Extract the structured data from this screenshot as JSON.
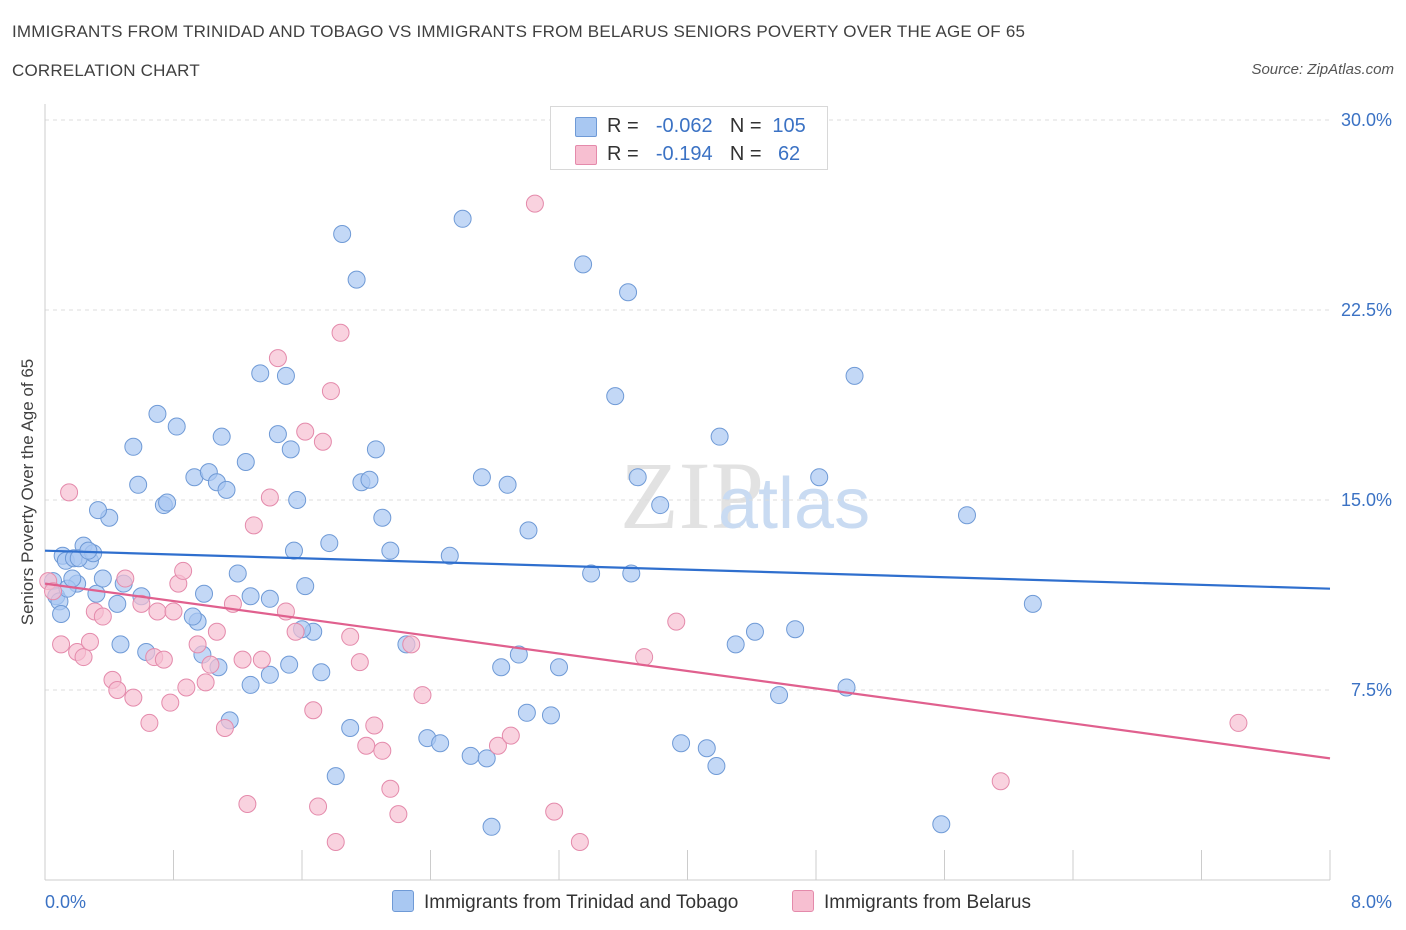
{
  "header": {
    "title": "IMMIGRANTS FROM TRINIDAD AND TOBAGO VS IMMIGRANTS FROM BELARUS SENIORS POVERTY OVER THE AGE OF 65",
    "subtitle": "CORRELATION CHART",
    "source": "Source: ZipAtlas.com"
  },
  "legend": {
    "series1": {
      "r_label": "R =",
      "r_value": "-0.062",
      "n_label": "N =",
      "n_value": "105"
    },
    "series2": {
      "r_label": "R =",
      "r_value": "-0.194",
      "n_label": "N =",
      "n_value": "62"
    }
  },
  "bottom_legend": {
    "series1_label": "Immigrants from Trinidad and Tobago",
    "series2_label": "Immigrants from Belarus"
  },
  "watermark": {
    "part1": "ZIP",
    "part2": "atlas"
  },
  "colors": {
    "series1_fill": "#a9c8f2",
    "series1_stroke": "#6f9ad6",
    "series1_line": "#2f6fce",
    "series2_fill": "#f7bfd1",
    "series2_stroke": "#e48aab",
    "series2_line": "#e0608e",
    "tick_label": "#3b72c4",
    "grid": "#dcdcdc"
  },
  "chart_data": {
    "type": "scatter",
    "title": "IMMIGRANTS FROM TRINIDAD AND TOBAGO VS IMMIGRANTS FROM BELARUS SENIORS POVERTY OVER THE AGE OF 65",
    "xlabel": "",
    "ylabel": "Seniors Poverty Over the Age of 65",
    "xlim": [
      0,
      8
    ],
    "ylim": [
      0,
      30
    ],
    "x_tick_labels": [
      "0.0%",
      "8.0%"
    ],
    "y_ticks": [
      7.5,
      15.0,
      22.5,
      30.0
    ],
    "y_tick_labels": [
      "7.5%",
      "15.0%",
      "22.5%",
      "30.0%"
    ],
    "grid": "horizontal dashed",
    "legend_position": "top-center",
    "series": [
      {
        "name": "Immigrants from Trinidad and Tobago",
        "trend": {
          "x": [
            0,
            8
          ],
          "y": [
            13.0,
            11.5
          ]
        },
        "points": [
          [
            0.05,
            11.8
          ],
          [
            0.07,
            11.2
          ],
          [
            0.09,
            11.0
          ],
          [
            0.11,
            12.8
          ],
          [
            0.13,
            12.6
          ],
          [
            0.18,
            12.7
          ],
          [
            0.2,
            11.7
          ],
          [
            0.24,
            13.2
          ],
          [
            0.28,
            12.6
          ],
          [
            0.32,
            11.3
          ],
          [
            0.36,
            11.9
          ],
          [
            0.14,
            11.5
          ],
          [
            0.21,
            12.7
          ],
          [
            0.3,
            12.9
          ],
          [
            0.45,
            10.9
          ],
          [
            0.47,
            9.3
          ],
          [
            0.63,
            9.0
          ],
          [
            0.58,
            15.6
          ],
          [
            0.55,
            17.1
          ],
          [
            0.49,
            11.7
          ],
          [
            0.6,
            11.2
          ],
          [
            0.7,
            18.4
          ],
          [
            0.74,
            14.8
          ],
          [
            0.76,
            14.9
          ],
          [
            0.82,
            17.9
          ],
          [
            0.93,
            15.9
          ],
          [
            0.95,
            10.2
          ],
          [
            0.99,
            11.3
          ],
          [
            1.02,
            16.1
          ],
          [
            1.07,
            15.7
          ],
          [
            1.1,
            17.5
          ],
          [
            1.13,
            15.4
          ],
          [
            0.92,
            10.4
          ],
          [
            1.2,
            12.1
          ],
          [
            1.25,
            16.5
          ],
          [
            1.28,
            11.2
          ],
          [
            1.34,
            20.0
          ],
          [
            1.4,
            11.1
          ],
          [
            1.45,
            17.6
          ],
          [
            1.5,
            19.9
          ],
          [
            1.53,
            17.0
          ],
          [
            1.57,
            15.0
          ],
          [
            1.62,
            11.6
          ],
          [
            1.67,
            9.8
          ],
          [
            1.77,
            13.3
          ],
          [
            1.85,
            25.5
          ],
          [
            1.9,
            6.0
          ],
          [
            1.94,
            23.7
          ],
          [
            1.97,
            15.7
          ],
          [
            2.02,
            15.8
          ],
          [
            2.06,
            17.0
          ],
          [
            2.1,
            14.3
          ],
          [
            2.15,
            13.0
          ],
          [
            2.25,
            9.3
          ],
          [
            2.38,
            5.6
          ],
          [
            2.46,
            5.4
          ],
          [
            2.52,
            12.8
          ],
          [
            2.65,
            4.9
          ],
          [
            2.6,
            26.1
          ],
          [
            2.72,
            15.9
          ],
          [
            2.75,
            4.8
          ],
          [
            2.78,
            2.1
          ],
          [
            2.84,
            8.4
          ],
          [
            2.88,
            15.6
          ],
          [
            2.95,
            8.9
          ],
          [
            3.0,
            6.6
          ],
          [
            3.01,
            13.8
          ],
          [
            3.15,
            6.5
          ],
          [
            3.2,
            8.4
          ],
          [
            3.35,
            24.3
          ],
          [
            3.4,
            12.1
          ],
          [
            3.55,
            19.1
          ],
          [
            3.63,
            23.2
          ],
          [
            3.65,
            12.1
          ],
          [
            3.69,
            15.9
          ],
          [
            3.83,
            14.8
          ],
          [
            3.96,
            5.4
          ],
          [
            4.12,
            5.2
          ],
          [
            4.18,
            4.5
          ],
          [
            4.2,
            17.5
          ],
          [
            4.3,
            9.3
          ],
          [
            4.42,
            9.8
          ],
          [
            4.57,
            7.3
          ],
          [
            4.67,
            9.9
          ],
          [
            4.82,
            15.9
          ],
          [
            4.99,
            7.6
          ],
          [
            5.04,
            19.9
          ],
          [
            5.74,
            14.4
          ],
          [
            5.58,
            2.2
          ],
          [
            6.15,
            10.9
          ],
          [
            1.55,
            13.0
          ],
          [
            1.6,
            9.9
          ],
          [
            0.98,
            8.9
          ],
          [
            1.08,
            8.4
          ],
          [
            1.15,
            6.3
          ],
          [
            1.28,
            7.7
          ],
          [
            1.4,
            8.1
          ],
          [
            1.52,
            8.5
          ],
          [
            1.72,
            8.2
          ],
          [
            1.81,
            4.1
          ],
          [
            0.1,
            10.5
          ],
          [
            0.17,
            11.9
          ],
          [
            0.4,
            14.3
          ],
          [
            0.33,
            14.6
          ],
          [
            0.27,
            13.0
          ]
        ]
      },
      {
        "name": "Immigrants from Belarus",
        "trend": {
          "x": [
            0,
            8
          ],
          "y": [
            11.7,
            4.8
          ]
        },
        "points": [
          [
            0.02,
            11.8
          ],
          [
            0.05,
            11.4
          ],
          [
            0.1,
            9.3
          ],
          [
            0.15,
            15.3
          ],
          [
            0.2,
            9.0
          ],
          [
            0.24,
            8.8
          ],
          [
            0.28,
            9.4
          ],
          [
            0.31,
            10.6
          ],
          [
            0.36,
            10.4
          ],
          [
            0.42,
            7.9
          ],
          [
            0.45,
            7.5
          ],
          [
            0.5,
            11.9
          ],
          [
            0.55,
            7.2
          ],
          [
            0.6,
            10.9
          ],
          [
            0.65,
            6.2
          ],
          [
            0.68,
            8.8
          ],
          [
            0.7,
            10.6
          ],
          [
            0.74,
            8.7
          ],
          [
            0.78,
            7.0
          ],
          [
            0.83,
            11.7
          ],
          [
            0.86,
            12.2
          ],
          [
            0.88,
            7.6
          ],
          [
            0.95,
            9.3
          ],
          [
            1.0,
            7.8
          ],
          [
            1.03,
            8.5
          ],
          [
            1.07,
            9.8
          ],
          [
            1.12,
            6.0
          ],
          [
            1.17,
            10.9
          ],
          [
            1.23,
            8.7
          ],
          [
            1.26,
            3.0
          ],
          [
            1.3,
            14.0
          ],
          [
            1.35,
            8.7
          ],
          [
            1.4,
            15.1
          ],
          [
            1.45,
            20.6
          ],
          [
            1.5,
            10.6
          ],
          [
            1.56,
            9.8
          ],
          [
            1.62,
            17.7
          ],
          [
            1.67,
            6.7
          ],
          [
            1.7,
            2.9
          ],
          [
            1.73,
            17.3
          ],
          [
            1.78,
            19.3
          ],
          [
            1.81,
            1.5
          ],
          [
            1.84,
            21.6
          ],
          [
            1.9,
            9.6
          ],
          [
            1.96,
            8.6
          ],
          [
            2.0,
            5.3
          ],
          [
            2.05,
            6.1
          ],
          [
            2.1,
            5.1
          ],
          [
            2.15,
            3.6
          ],
          [
            2.2,
            2.6
          ],
          [
            2.28,
            9.3
          ],
          [
            2.35,
            7.3
          ],
          [
            2.82,
            5.3
          ],
          [
            2.9,
            5.7
          ],
          [
            3.05,
            26.7
          ],
          [
            3.17,
            2.7
          ],
          [
            3.33,
            1.5
          ],
          [
            3.73,
            8.8
          ],
          [
            3.93,
            10.2
          ],
          [
            5.95,
            3.9
          ],
          [
            7.43,
            6.2
          ],
          [
            0.8,
            10.6
          ]
        ]
      }
    ]
  }
}
